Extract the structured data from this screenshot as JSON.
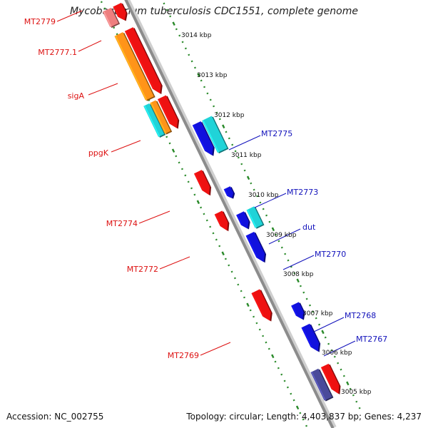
{
  "title": "Mycobacterium tuberculosis CDC1551, complete genome",
  "footer": {
    "accession": "Accession: NC_002755",
    "summary": "Topology: circular; Length: 4,403,837 bp; Genes: 4,237"
  },
  "colors": {
    "backbone": "#8c8c8c",
    "ruler": "#2a8a2a",
    "left_label": "#dd1111",
    "right_label": "#1111bb",
    "red": "#ee1111",
    "pink": "#ee7f7f",
    "orange": "#ff9419",
    "cyan": "#20d3d8",
    "blue": "#1111dd",
    "gray": "#777777",
    "navy": "#4a4a9a"
  },
  "ruler_ticks": [
    "3014 kbp",
    "3013 kbp",
    "3012 kbp",
    "3011 kbp",
    "3010 kbp",
    "3009 kbp",
    "3008 kbp",
    "3007 kbp",
    "3006 kbp",
    "3005 kbp"
  ],
  "left_labels": [
    "MT2779",
    "MT2777.1",
    "sigA",
    "ppgK",
    "MT2774",
    "MT2772",
    "MT2769"
  ],
  "right_labels": [
    "MT2775",
    "MT2773",
    "dut",
    "MT2770",
    "MT2768",
    "MT2767"
  ]
}
